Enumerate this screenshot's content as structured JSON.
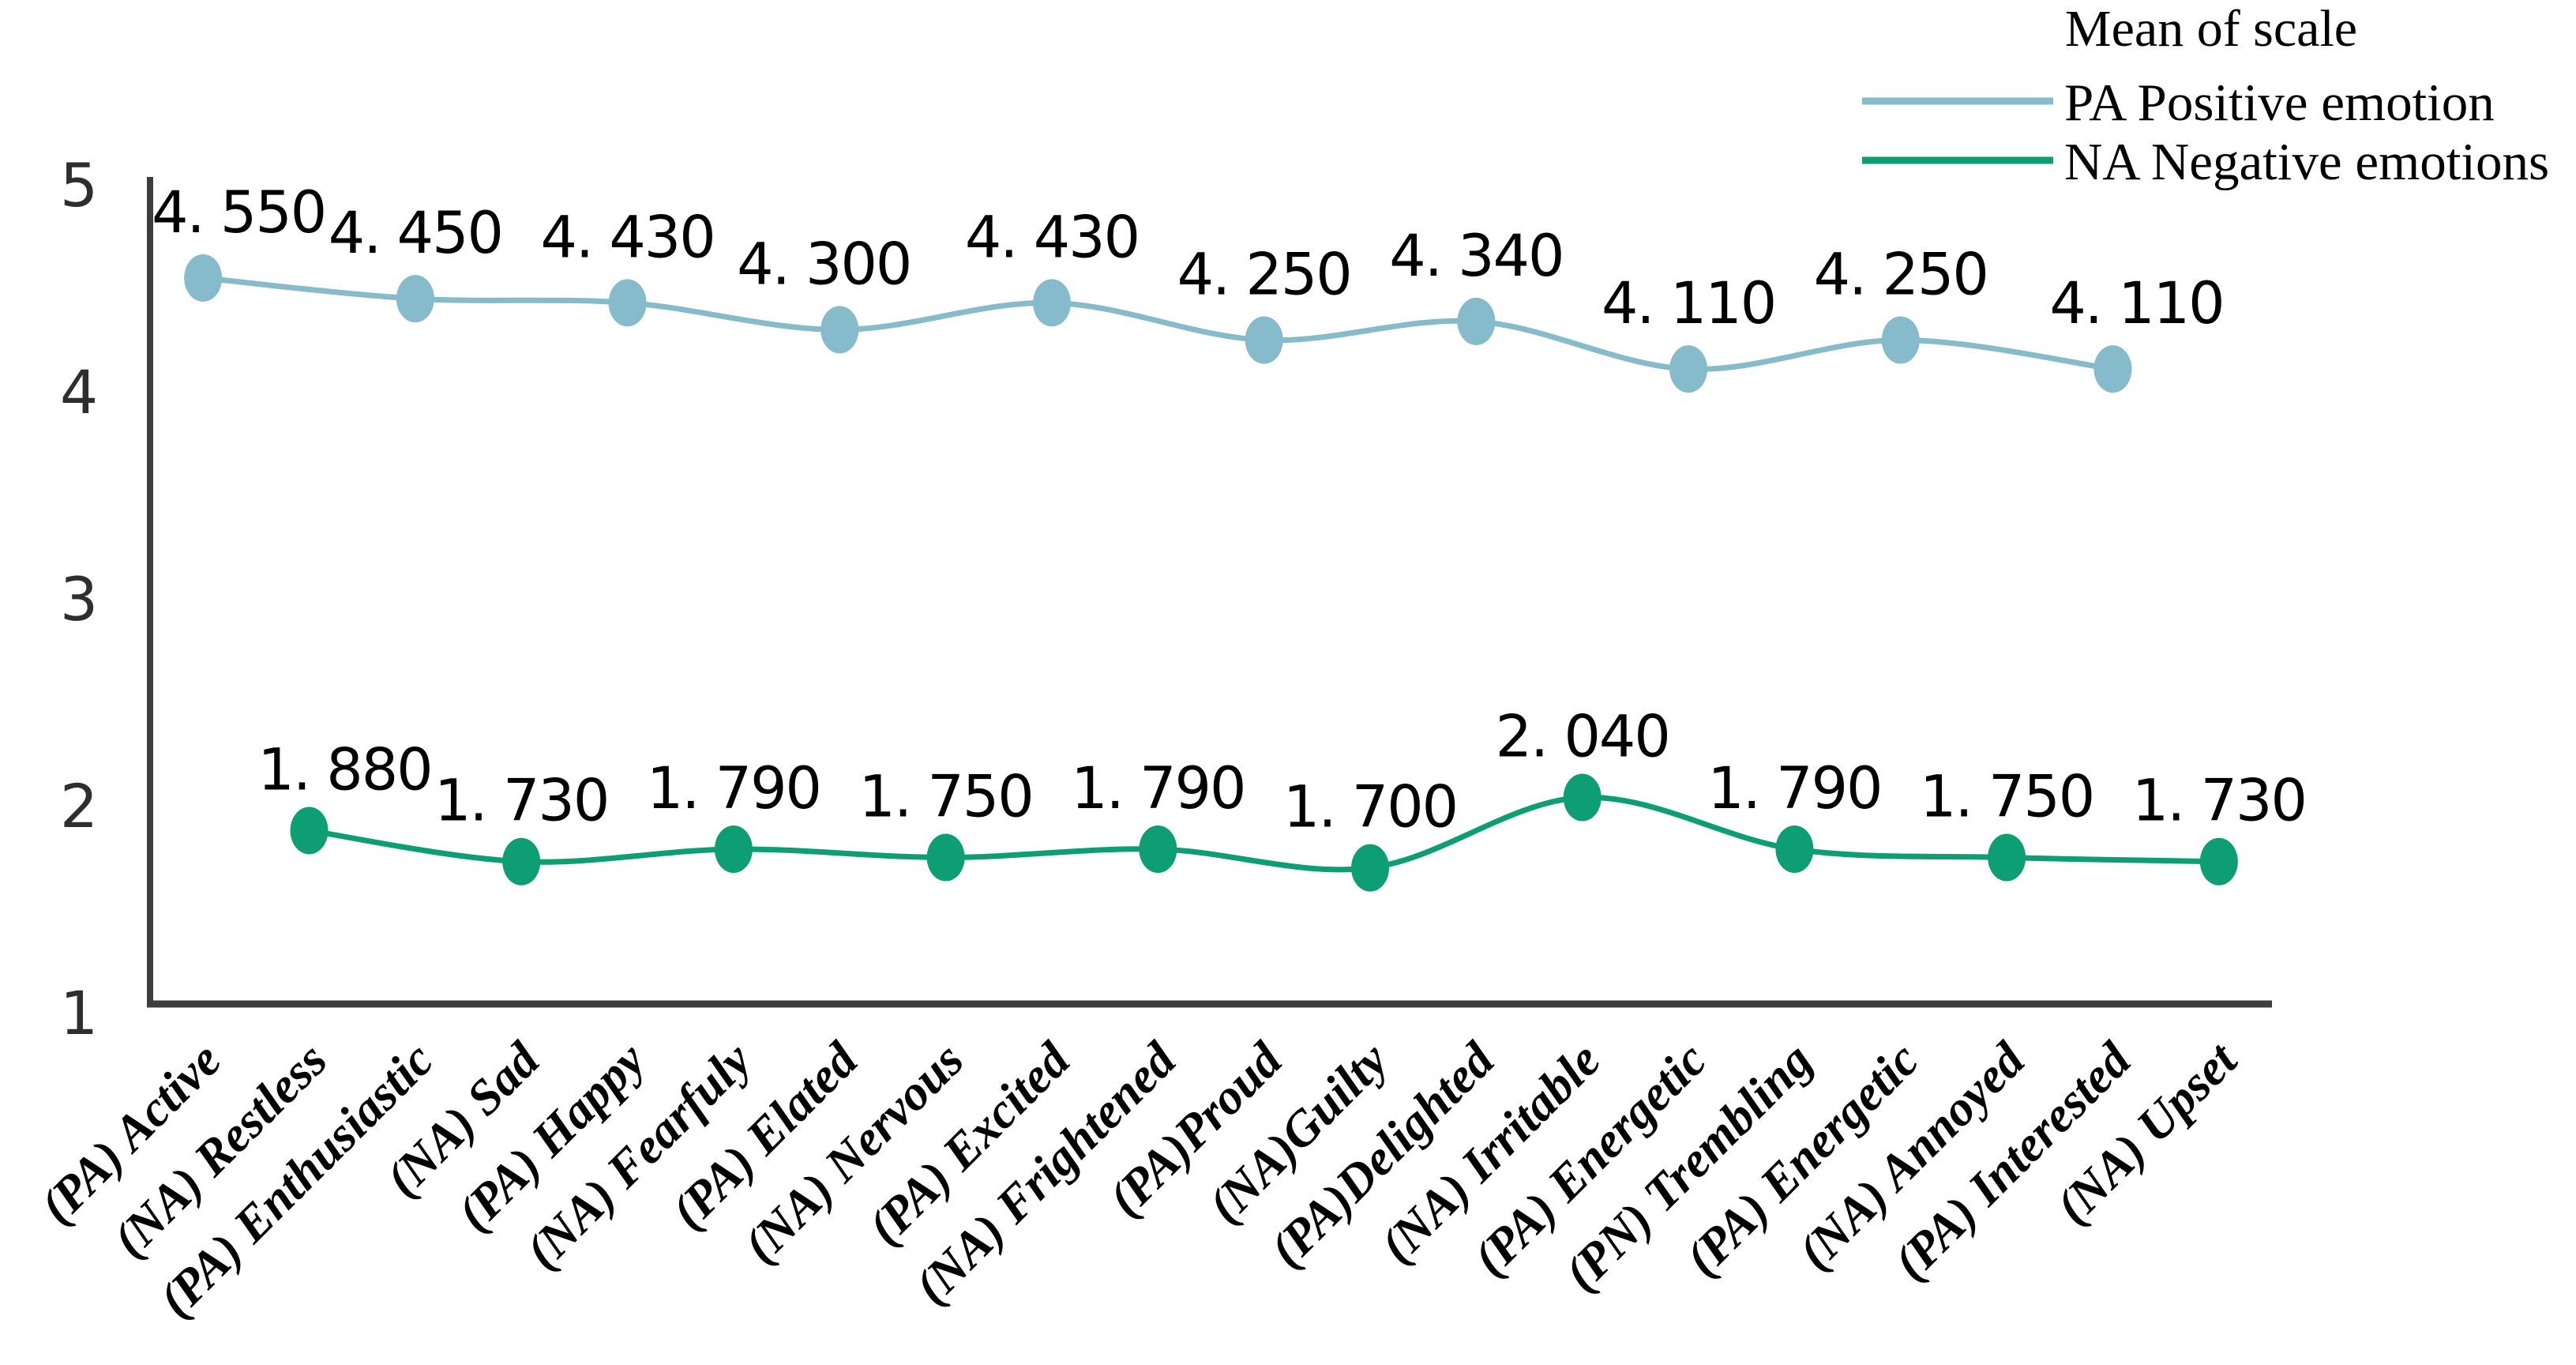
{
  "page": {
    "background": "#ffffff"
  },
  "chart_data": {
    "type": "line",
    "smoothed": true,
    "grid": false,
    "legend": {
      "title": "Mean of scale",
      "position": "top-right",
      "entries": [
        {
          "label": "PA Positive emotion",
          "color": "#85bbca"
        },
        {
          "label": "NA Negative emotions",
          "color": "#0d9e74"
        }
      ]
    },
    "y_axis": {
      "min": 1,
      "max": 5,
      "ticks": [
        "5",
        "4",
        "3",
        "2",
        "1"
      ],
      "tick_values": [
        5,
        4,
        3,
        2,
        1
      ]
    },
    "x_axis": {
      "label_rotation_deg": -45
    },
    "categories": [
      "(PA) Active",
      "(NA) Restless",
      "(PA) Enthusiastic",
      "(NA) Sad",
      "(PA) Happy",
      "(NA) Fearfuly",
      "(PA) Elated",
      "(NA) Nervous",
      "(PA) Excited",
      "(NA) Frightened",
      "(PA)Proud",
      "(NA)Guilty",
      "(PA)Delighted",
      "(NA) Irritable",
      "(PA) Energetic",
      "(PN) Trembling",
      "(PA) Energetic",
      "(NA) Annoyed",
      "(PA) Interested",
      "(NA) Upset"
    ],
    "series": [
      {
        "name": "PA Positive emotion",
        "color": "#85bbca",
        "points": [
          {
            "category_index": 0,
            "value": 4.55,
            "label": "4. 550",
            "label_dx": 45
          },
          {
            "category_index": 2,
            "value": 4.45,
            "label": "4. 450",
            "label_dx": 0
          },
          {
            "category_index": 4,
            "value": 4.43,
            "label": "4. 430",
            "label_dx": 0
          },
          {
            "category_index": 6,
            "value": 4.3,
            "label": "4. 300",
            "label_dx": -20
          },
          {
            "category_index": 8,
            "value": 4.43,
            "label": "4. 430",
            "label_dx": 0
          },
          {
            "category_index": 10,
            "value": 4.25,
            "label": "4. 250",
            "label_dx": 0
          },
          {
            "category_index": 12,
            "value": 4.34,
            "label": "4. 340",
            "label_dx": 0
          },
          {
            "category_index": 14,
            "value": 4.11,
            "label": "4. 110",
            "label_dx": 0
          },
          {
            "category_index": 16,
            "value": 4.25,
            "label": "4. 250",
            "label_dx": 0
          },
          {
            "category_index": 18,
            "value": 4.11,
            "label": "4. 110",
            "label_dx": 30
          }
        ]
      },
      {
        "name": "NA Negative emotions",
        "color": "#0d9e74",
        "points": [
          {
            "category_index": 1,
            "value": 1.88,
            "label": "1. 880",
            "label_dx": 45
          },
          {
            "category_index": 3,
            "value": 1.73,
            "label": "1. 730",
            "label_dx": 0
          },
          {
            "category_index": 5,
            "value": 1.79,
            "label": "1. 790",
            "label_dx": 0
          },
          {
            "category_index": 7,
            "value": 1.75,
            "label": "1. 750",
            "label_dx": 0
          },
          {
            "category_index": 9,
            "value": 1.79,
            "label": "1. 790",
            "label_dx": 0
          },
          {
            "category_index": 11,
            "value": 1.7,
            "label": "1. 700",
            "label_dx": 0
          },
          {
            "category_index": 13,
            "value": 2.04,
            "label": "2. 040",
            "label_dx": 0
          },
          {
            "category_index": 15,
            "value": 1.79,
            "label": "1. 790",
            "label_dx": 0
          },
          {
            "category_index": 17,
            "value": 1.75,
            "label": "1. 750",
            "label_dx": 0
          },
          {
            "category_index": 19,
            "value": 1.73,
            "label": "1. 730",
            "label_dx": 0
          }
        ]
      }
    ]
  }
}
